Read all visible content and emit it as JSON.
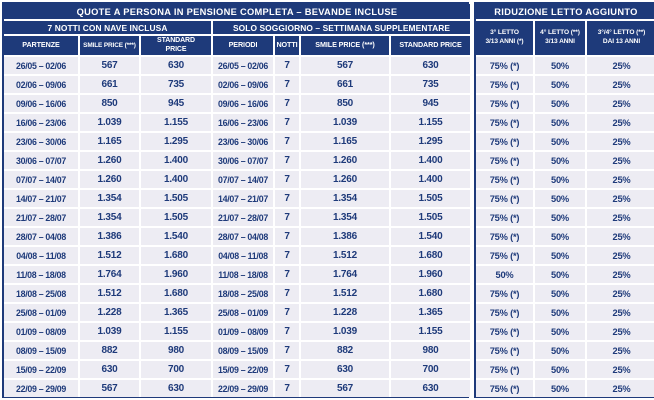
{
  "left": {
    "title": "QUOTE A PERSONA IN PENSIONE COMPLETA – BEVANDE INCLUSE",
    "groups": [
      "7 NOTTI CON NAVE INCLUSA",
      "SOLO SOGGIORNO – SETTIMANA SUPPLEMENTARE"
    ],
    "columns": [
      "PARTENZE",
      "SMILE PRICE (***)",
      "STANDARD\nPRICE",
      "PERIODI",
      "NOTTI",
      "SMILE PRICE (***)",
      "STANDARD PRICE"
    ]
  },
  "right": {
    "title": "RIDUZIONE LETTO AGGIUNTO",
    "columns": [
      "3° LETTO\n3/13 ANNI (*)",
      "4° LETTO (**)\n3/13 ANNI",
      "3°/4° LETTO (**)\nDAI 13 ANNI"
    ]
  },
  "rows": [
    {
      "periodo": "26/05 – 02/06",
      "smile": "567",
      "standard": "630",
      "notti": "7",
      "letto3": "75% (*)",
      "letto4": "50%",
      "letto34": "25%"
    },
    {
      "periodo": "02/06 – 09/06",
      "smile": "661",
      "standard": "735",
      "notti": "7",
      "letto3": "75% (*)",
      "letto4": "50%",
      "letto34": "25%"
    },
    {
      "periodo": "09/06 – 16/06",
      "smile": "850",
      "standard": "945",
      "notti": "7",
      "letto3": "75% (*)",
      "letto4": "50%",
      "letto34": "25%"
    },
    {
      "periodo": "16/06 – 23/06",
      "smile": "1.039",
      "standard": "1.155",
      "notti": "7",
      "letto3": "75% (*)",
      "letto4": "50%",
      "letto34": "25%"
    },
    {
      "periodo": "23/06 – 30/06",
      "smile": "1.165",
      "standard": "1.295",
      "notti": "7",
      "letto3": "75% (*)",
      "letto4": "50%",
      "letto34": "25%"
    },
    {
      "periodo": "30/06 – 07/07",
      "smile": "1.260",
      "standard": "1.400",
      "notti": "7",
      "letto3": "75% (*)",
      "letto4": "50%",
      "letto34": "25%"
    },
    {
      "periodo": "07/07 – 14/07",
      "smile": "1.260",
      "standard": "1.400",
      "notti": "7",
      "letto3": "75% (*)",
      "letto4": "50%",
      "letto34": "25%"
    },
    {
      "periodo": "14/07 – 21/07",
      "smile": "1.354",
      "standard": "1.505",
      "notti": "7",
      "letto3": "75% (*)",
      "letto4": "50%",
      "letto34": "25%"
    },
    {
      "periodo": "21/07 – 28/07",
      "smile": "1.354",
      "standard": "1.505",
      "notti": "7",
      "letto3": "75% (*)",
      "letto4": "50%",
      "letto34": "25%"
    },
    {
      "periodo": "28/07 – 04/08",
      "smile": "1.386",
      "standard": "1.540",
      "notti": "7",
      "letto3": "75% (*)",
      "letto4": "50%",
      "letto34": "25%"
    },
    {
      "periodo": "04/08 – 11/08",
      "smile": "1.512",
      "standard": "1.680",
      "notti": "7",
      "letto3": "75% (*)",
      "letto4": "50%",
      "letto34": "25%"
    },
    {
      "periodo": "11/08 – 18/08",
      "smile": "1.764",
      "standard": "1.960",
      "notti": "7",
      "letto3": "50%",
      "letto4": "50%",
      "letto34": "25%"
    },
    {
      "periodo": "18/08 – 25/08",
      "smile": "1.512",
      "standard": "1.680",
      "notti": "7",
      "letto3": "75% (*)",
      "letto4": "50%",
      "letto34": "25%"
    },
    {
      "periodo": "25/08 – 01/09",
      "smile": "1.228",
      "standard": "1.365",
      "notti": "7",
      "letto3": "75% (*)",
      "letto4": "50%",
      "letto34": "25%"
    },
    {
      "periodo": "01/09 – 08/09",
      "smile": "1.039",
      "standard": "1.155",
      "notti": "7",
      "letto3": "75% (*)",
      "letto4": "50%",
      "letto34": "25%"
    },
    {
      "periodo": "08/09 – 15/09",
      "smile": "882",
      "standard": "980",
      "notti": "7",
      "letto3": "75% (*)",
      "letto4": "50%",
      "letto34": "25%"
    },
    {
      "periodo": "15/09 – 22/09",
      "smile": "630",
      "standard": "700",
      "notti": "7",
      "letto3": "75% (*)",
      "letto4": "50%",
      "letto34": "25%"
    },
    {
      "periodo": "22/09 – 29/09",
      "smile": "567",
      "standard": "630",
      "notti": "7",
      "letto3": "75% (*)",
      "letto4": "50%",
      "letto34": "25%"
    }
  ],
  "colors": {
    "navy": "#1e3a7a",
    "row_bg": "#edecf3",
    "header_text": "#ffffff"
  }
}
